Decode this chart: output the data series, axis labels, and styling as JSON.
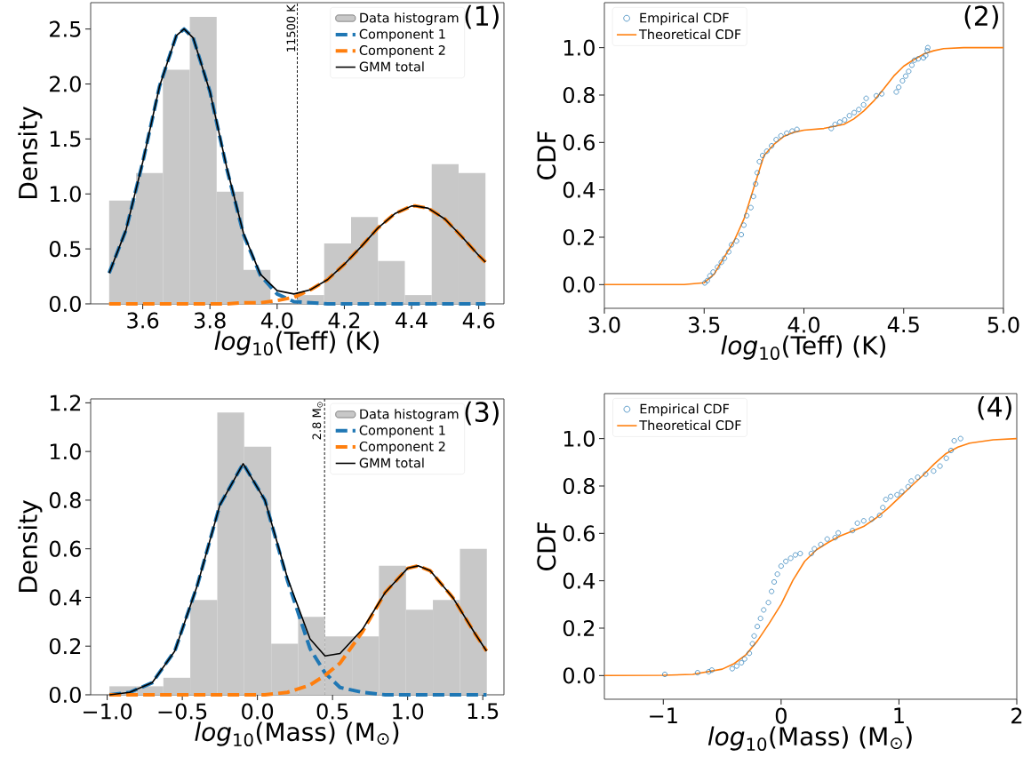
{
  "chart_data": [
    {
      "type": "histogram",
      "xlabel": "*log*$_{10}$(Teff)  (K)",
      "ylabel": "Density",
      "annotations": [
        "(1)"
      ],
      "legend": "top right",
      "xlim": [
        3.445,
        4.675
      ],
      "ylim": [
        0,
        2.74
      ],
      "xticks": [
        3.6,
        3.8,
        {
          "value": 4.0,
          "label": "4.0"
        },
        4.2,
        4.4,
        4.6
      ],
      "yticks": [
        {
          "value": 0.0,
          "label": "0.0"
        },
        0.5,
        {
          "value": 1.0,
          "label": "1.0"
        },
        1.5,
        {
          "value": 2.0,
          "label": "2.0"
        },
        2.5
      ],
      "ref_lines": [
        {
          "axis": "x",
          "value": 4.06,
          "label": "11500 K",
          "color": "#000000",
          "line_style": "dashed"
        }
      ],
      "series": [
        {
          "name": "Data histogram",
          "color": "#c8c8c8",
          "bins": [
            3.5,
            3.58,
            3.66,
            3.74,
            3.82,
            3.9,
            3.98,
            4.06,
            4.14,
            4.22,
            4.3,
            4.38,
            4.46,
            4.54,
            4.62
          ],
          "values": [
            0.94,
            1.19,
            2.13,
            2.61,
            1.02,
            0.31,
            0,
            0.08,
            0.55,
            0.79,
            0.39,
            0.08,
            1.27,
            1.19
          ]
        },
        {
          "type": "line",
          "name": "Component 1",
          "color": "#1f77b4",
          "line_style": "dashed",
          "x": [
            3.5,
            3.55,
            3.6,
            3.65,
            3.7,
            3.723,
            3.75,
            3.8,
            3.85,
            3.9,
            3.95,
            4.0,
            4.05,
            4.1,
            4.15,
            4.2,
            4.25,
            4.3,
            4.35,
            4.4,
            4.413,
            4.45,
            4.5,
            4.55,
            4.6,
            4.62
          ],
          "values": [
            0.28,
            0.67,
            1.29,
            1.98,
            2.44,
            2.5,
            2.42,
            1.93,
            1.23,
            0.63,
            0.26,
            0.09,
            0.02,
            0.01,
            0,
            0,
            0,
            0,
            0,
            0,
            0,
            0,
            0,
            0,
            0,
            0
          ]
        },
        {
          "type": "line",
          "name": "Component 2",
          "color": "#ff7f0e",
          "line_style": "dashed",
          "x": [
            3.5,
            3.55,
            3.6,
            3.65,
            3.7,
            3.723,
            3.75,
            3.8,
            3.85,
            3.9,
            3.95,
            4.0,
            4.05,
            4.1,
            4.15,
            4.2,
            4.25,
            4.3,
            4.35,
            4.4,
            4.413,
            4.45,
            4.5,
            4.55,
            4.6,
            4.62
          ],
          "values": [
            0,
            0,
            0,
            0,
            0,
            0,
            0,
            0,
            0,
            0.01,
            0.01,
            0.03,
            0.06,
            0.13,
            0.22,
            0.36,
            0.52,
            0.69,
            0.82,
            0.89,
            0.89,
            0.87,
            0.77,
            0.61,
            0.44,
            0.38
          ]
        },
        {
          "type": "line",
          "name": "GMM total",
          "color": "#000000",
          "line_style": "solid",
          "x": [
            3.5,
            3.55,
            3.6,
            3.65,
            3.7,
            3.723,
            3.75,
            3.8,
            3.85,
            3.9,
            3.95,
            4.0,
            4.05,
            4.1,
            4.15,
            4.2,
            4.25,
            4.3,
            4.35,
            4.4,
            4.413,
            4.45,
            4.5,
            4.55,
            4.6,
            4.62
          ],
          "values": [
            0.28,
            0.67,
            1.29,
            1.98,
            2.44,
            2.5,
            2.42,
            1.93,
            1.24,
            0.64,
            0.27,
            0.12,
            0.09,
            0.13,
            0.22,
            0.36,
            0.52,
            0.69,
            0.82,
            0.89,
            0.89,
            0.87,
            0.77,
            0.61,
            0.44,
            0.38
          ]
        }
      ]
    },
    {
      "type": "scatter",
      "xlabel": "*log*$_{10}$(Teff)  (K)",
      "ylabel": "CDF",
      "annotations": [
        "(2)"
      ],
      "legend": "top left",
      "xlim": [
        3.0,
        5.0
      ],
      "ylim": [
        -0.1,
        1.19
      ],
      "xticks": [
        {
          "value": 3.0,
          "label": "3.0"
        },
        3.5,
        {
          "value": 4.0,
          "label": "4.0"
        },
        4.5,
        {
          "value": 5.0,
          "label": "5.0"
        }
      ],
      "yticks": [
        {
          "value": 0.0,
          "label": "0.0"
        },
        0.2,
        0.4,
        0.6,
        0.8,
        {
          "value": 1.0,
          "label": "1.0"
        }
      ],
      "series": [
        {
          "name": "Empirical CDF",
          "color": "#1f77b4",
          "marker": "circle",
          "x": [
            3.503,
            3.516,
            3.529,
            3.545,
            3.567,
            3.586,
            3.602,
            3.623,
            3.637,
            3.662,
            3.686,
            3.699,
            3.713,
            3.734,
            3.747,
            3.758,
            3.766,
            3.777,
            3.793,
            3.814,
            3.838,
            3.861,
            3.885,
            3.914,
            3.941,
            3.965,
            4.137,
            4.156,
            4.18,
            4.204,
            4.228,
            4.252,
            4.275,
            4.299,
            4.312,
            4.363,
            4.39,
            4.463,
            4.475,
            4.494,
            4.51,
            4.525,
            4.541,
            4.554,
            4.573,
            4.599,
            4.61,
            4.618,
            4.621
          ],
          "values": [
            0.007,
            0.017,
            0.037,
            0.053,
            0.074,
            0.094,
            0.111,
            0.138,
            0.168,
            0.184,
            0.211,
            0.251,
            0.291,
            0.325,
            0.372,
            0.425,
            0.472,
            0.519,
            0.545,
            0.563,
            0.586,
            0.612,
            0.628,
            0.639,
            0.648,
            0.655,
            0.659,
            0.676,
            0.686,
            0.695,
            0.713,
            0.726,
            0.739,
            0.759,
            0.786,
            0.797,
            0.805,
            0.813,
            0.833,
            0.86,
            0.88,
            0.9,
            0.926,
            0.947,
            0.953,
            0.957,
            0.967,
            0.987,
            1.0
          ]
        },
        {
          "type": "line",
          "name": "Theoretical CDF",
          "color": "#ff7f0e",
          "line_style": "solid",
          "x": [
            3.0,
            3.4,
            3.5,
            3.55,
            3.6,
            3.65,
            3.7,
            3.75,
            3.8,
            3.85,
            3.9,
            3.95,
            4.0,
            4.1,
            4.2,
            4.25,
            4.3,
            4.35,
            4.4,
            4.45,
            4.5,
            4.55,
            4.6,
            4.65,
            4.7,
            4.8,
            5.0
          ],
          "values": [
            0,
            0,
            0.008,
            0.044,
            0.115,
            0.184,
            0.278,
            0.412,
            0.545,
            0.592,
            0.626,
            0.643,
            0.652,
            0.659,
            0.676,
            0.699,
            0.733,
            0.775,
            0.826,
            0.88,
            0.922,
            0.949,
            0.973,
            0.987,
            0.996,
            1.0,
            1.0
          ]
        }
      ]
    },
    {
      "type": "histogram",
      "xlabel": "*log*$_{10}$(Mass)  (M$_{⊙}$)",
      "ylabel": "Density",
      "annotations": [
        "(3)"
      ],
      "legend": "top right",
      "xlim": [
        -1.11,
        1.641
      ],
      "ylim": [
        0,
        1.216
      ],
      "xticks": [
        {
          "value": -1.0,
          "label": "−1.0"
        },
        {
          "value": -0.5,
          "label": "−0.5"
        },
        {
          "value": 0.0,
          "label": "0.0"
        },
        0.5,
        {
          "value": 1.0,
          "label": "1.0"
        },
        1.5
      ],
      "yticks": [
        {
          "value": 0.0,
          "label": "0.0"
        },
        0.2,
        0.4,
        0.6,
        0.8,
        {
          "value": 1.0,
          "label": "1.0"
        },
        1.2
      ],
      "ref_lines": [
        {
          "axis": "x",
          "value": 0.447,
          "label": "2.8 M$_{⊙}$",
          "color": "#000000",
          "line_style": "dashed"
        }
      ],
      "series": [
        {
          "name": "Data histogram",
          "color": "#c8c8c8",
          "bins": [
            -0.985,
            -0.806,
            -0.626,
            -0.447,
            -0.267,
            -0.088,
            0.092,
            0.271,
            0.45,
            0.63,
            0.809,
            0.989,
            1.168,
            1.348,
            1.527
          ],
          "values": [
            0.035,
            0.035,
            0.07,
            0.39,
            1.16,
            1.02,
            0.21,
            0.32,
            0.24,
            0.24,
            0.53,
            0.35,
            0.39,
            0.6
          ]
        },
        {
          "type": "line",
          "name": "Component 1",
          "color": "#1f77b4",
          "line_style": "dashed",
          "x": [
            -0.985,
            -0.85,
            -0.7,
            -0.55,
            -0.4,
            -0.25,
            -0.095,
            0.05,
            0.2,
            0.35,
            0.45,
            0.55,
            0.7,
            0.85,
            1.0,
            1.069,
            1.15,
            1.3,
            1.45,
            1.525
          ],
          "values": [
            0,
            0.01,
            0.05,
            0.18,
            0.45,
            0.78,
            0.95,
            0.8,
            0.47,
            0.19,
            0.09,
            0.03,
            0.01,
            0,
            0,
            0,
            0,
            0,
            0,
            0
          ]
        },
        {
          "type": "line",
          "name": "Component 2",
          "color": "#ff7f0e",
          "line_style": "dashed",
          "x": [
            -0.985,
            -0.85,
            -0.7,
            -0.55,
            -0.4,
            -0.25,
            -0.095,
            0.05,
            0.2,
            0.35,
            0.45,
            0.55,
            0.7,
            0.85,
            1.0,
            1.069,
            1.15,
            1.3,
            1.45,
            1.525
          ],
          "values": [
            0,
            0,
            0,
            0,
            0,
            0,
            0,
            0,
            0.01,
            0.04,
            0.08,
            0.13,
            0.26,
            0.42,
            0.52,
            0.53,
            0.51,
            0.4,
            0.25,
            0.18
          ]
        },
        {
          "type": "line",
          "name": "GMM total",
          "color": "#000000",
          "line_style": "solid",
          "x": [
            -0.985,
            -0.85,
            -0.7,
            -0.55,
            -0.4,
            -0.25,
            -0.095,
            0.05,
            0.2,
            0.35,
            0.45,
            0.55,
            0.7,
            0.85,
            1.0,
            1.069,
            1.15,
            1.3,
            1.45,
            1.525
          ],
          "values": [
            0,
            0.01,
            0.05,
            0.18,
            0.45,
            0.78,
            0.95,
            0.8,
            0.48,
            0.23,
            0.16,
            0.17,
            0.27,
            0.42,
            0.52,
            0.53,
            0.51,
            0.4,
            0.25,
            0.18
          ]
        }
      ]
    },
    {
      "type": "scatter",
      "xlabel": "*log*$_{10}$(Mass)  (M$_{⊙}$)",
      "ylabel": "CDF",
      "annotations": [
        "(4)"
      ],
      "legend": "top left",
      "xlim": [
        -1.5,
        2
      ],
      "ylim": [
        -0.1,
        1.19
      ],
      "xticks": [
        {
          "value": -1,
          "label": "−1"
        },
        0,
        1,
        2
      ],
      "yticks": [
        {
          "value": 0.0,
          "label": "0.0"
        },
        0.2,
        0.4,
        0.6,
        0.8,
        {
          "value": 1.0,
          "label": "1.0"
        }
      ],
      "series": [
        {
          "name": "Empirical CDF",
          "color": "#1f77b4",
          "marker": "circle",
          "x": [
            -0.987,
            -0.709,
            -0.615,
            -0.588,
            -0.415,
            -0.377,
            -0.337,
            -0.31,
            -0.27,
            -0.243,
            -0.229,
            -0.202,
            -0.175,
            -0.148,
            -0.108,
            -0.081,
            -0.059,
            -0.032,
            0.0,
            0.04,
            0.081,
            0.121,
            0.162,
            0.256,
            0.283,
            0.337,
            0.391,
            0.458,
            0.485,
            0.606,
            0.647,
            0.701,
            0.768,
            0.836,
            0.863,
            0.889,
            0.93,
            0.984,
            1.024,
            1.078,
            1.105,
            1.159,
            1.226,
            1.294,
            1.348,
            1.402,
            1.442,
            1.469,
            1.523
          ],
          "values": [
            0.005,
            0.012,
            0.016,
            0.023,
            0.029,
            0.04,
            0.054,
            0.07,
            0.094,
            0.134,
            0.167,
            0.207,
            0.241,
            0.277,
            0.308,
            0.355,
            0.395,
            0.428,
            0.462,
            0.482,
            0.495,
            0.509,
            0.515,
            0.515,
            0.535,
            0.553,
            0.576,
            0.582,
            0.602,
            0.612,
            0.643,
            0.653,
            0.66,
            0.676,
            0.709,
            0.743,
            0.756,
            0.763,
            0.776,
            0.797,
            0.821,
            0.837,
            0.85,
            0.863,
            0.884,
            0.917,
            0.95,
            0.991,
            1.0
          ]
        },
        {
          "type": "line",
          "name": "Theoretical CDF",
          "color": "#ff7f0e",
          "line_style": "solid",
          "x": [
            -1.5,
            -1.0,
            -0.75,
            -0.5,
            -0.4,
            -0.3,
            -0.2,
            -0.1,
            0.0,
            0.1,
            0.2,
            0.3,
            0.4,
            0.5,
            0.6,
            0.7,
            0.8,
            0.9,
            1.0,
            1.1,
            1.2,
            1.3,
            1.4,
            1.5,
            1.6,
            1.8,
            2.0
          ],
          "values": [
            0,
            0.001,
            0.005,
            0.027,
            0.05,
            0.087,
            0.147,
            0.221,
            0.301,
            0.402,
            0.482,
            0.531,
            0.562,
            0.589,
            0.609,
            0.629,
            0.663,
            0.703,
            0.75,
            0.797,
            0.843,
            0.893,
            0.937,
            0.964,
            0.981,
            0.995,
            1.0
          ]
        }
      ]
    }
  ]
}
